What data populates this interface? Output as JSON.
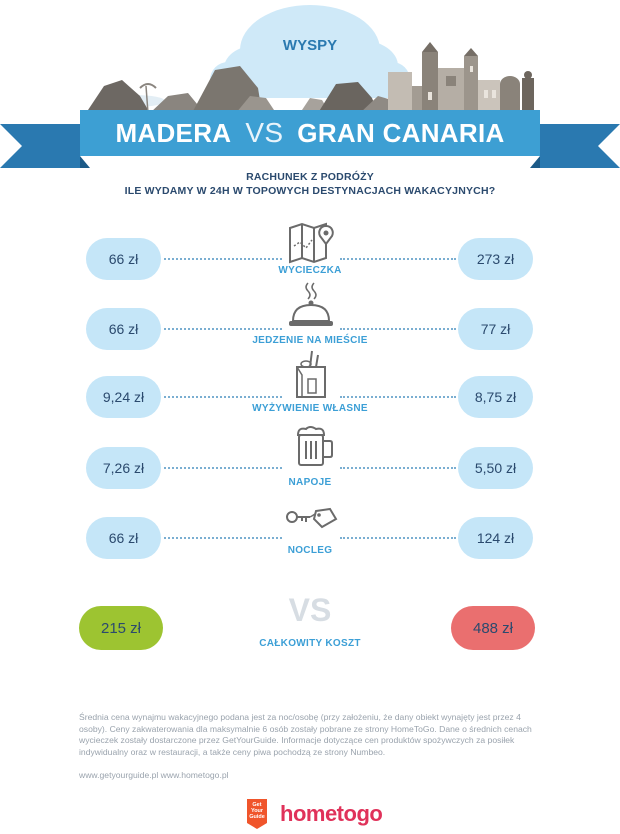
{
  "header": {
    "category": "WYSPY",
    "left_destination": "MADERA",
    "vs": "VS",
    "right_destination": "GRAN CANARIA"
  },
  "subtitle": {
    "line1": "RACHUNEK Z PODRÓŻY",
    "line2": "ILE WYDAMY W 24H W TOPOWYCH DESTYNACJACH WAKACYJNYCH?"
  },
  "rows": [
    {
      "label": "WYCIECZKA",
      "left": "66 zł",
      "right": "273 zł",
      "icon": "map-pin-icon"
    },
    {
      "label": "JEDZENIE NA MIEŚCIE",
      "left": "66 zł",
      "right": "77 zł",
      "icon": "cloche-icon"
    },
    {
      "label": "WYŻYWIENIE WŁASNE",
      "left": "9,24 zł",
      "right": "8,75 zł",
      "icon": "grocery-bag-icon"
    },
    {
      "label": "NAPOJE",
      "left": "7,26 zł",
      "right": "5,50 zł",
      "icon": "beer-mug-icon"
    },
    {
      "label": "NOCLEG",
      "left": "66 zł",
      "right": "124 zł",
      "icon": "key-tag-icon"
    }
  ],
  "total": {
    "vs": "VS",
    "label": "CAŁKOWITY KOSZT",
    "left": "215 zł",
    "right": "488 zł",
    "left_color": "#9dc431",
    "right_color": "#ea6f6f"
  },
  "footnote": "Średnia cena wynajmu wakacyjnego podana jest za noc/osobę (przy założeniu, że dany obiekt wynajęty jest przez 4 osoby). Ceny zakwaterowania dla maksymalnie 6 osób zostały pobrane ze strony HomeToGo. Dane o średnich cenach wycieczek zostały dostarczone przez GetYourGuide. Informacje dotyczące cen produktów spożywczych za posiłek indywidualny oraz w restauracji, a także ceny piwa pochodzą ze strony Numbeo.",
  "sources": "www.getyourguide.pl  www.hometogo.pl",
  "logos": {
    "getyourguide": "Get Your Guide",
    "hometogo": "hometogo"
  },
  "colors": {
    "banner": "#3d9fd3",
    "banner_dark": "#2a79b0",
    "pill": "#c5e6f8",
    "label": "#3c9fd6",
    "text": "#2b4a6e"
  }
}
